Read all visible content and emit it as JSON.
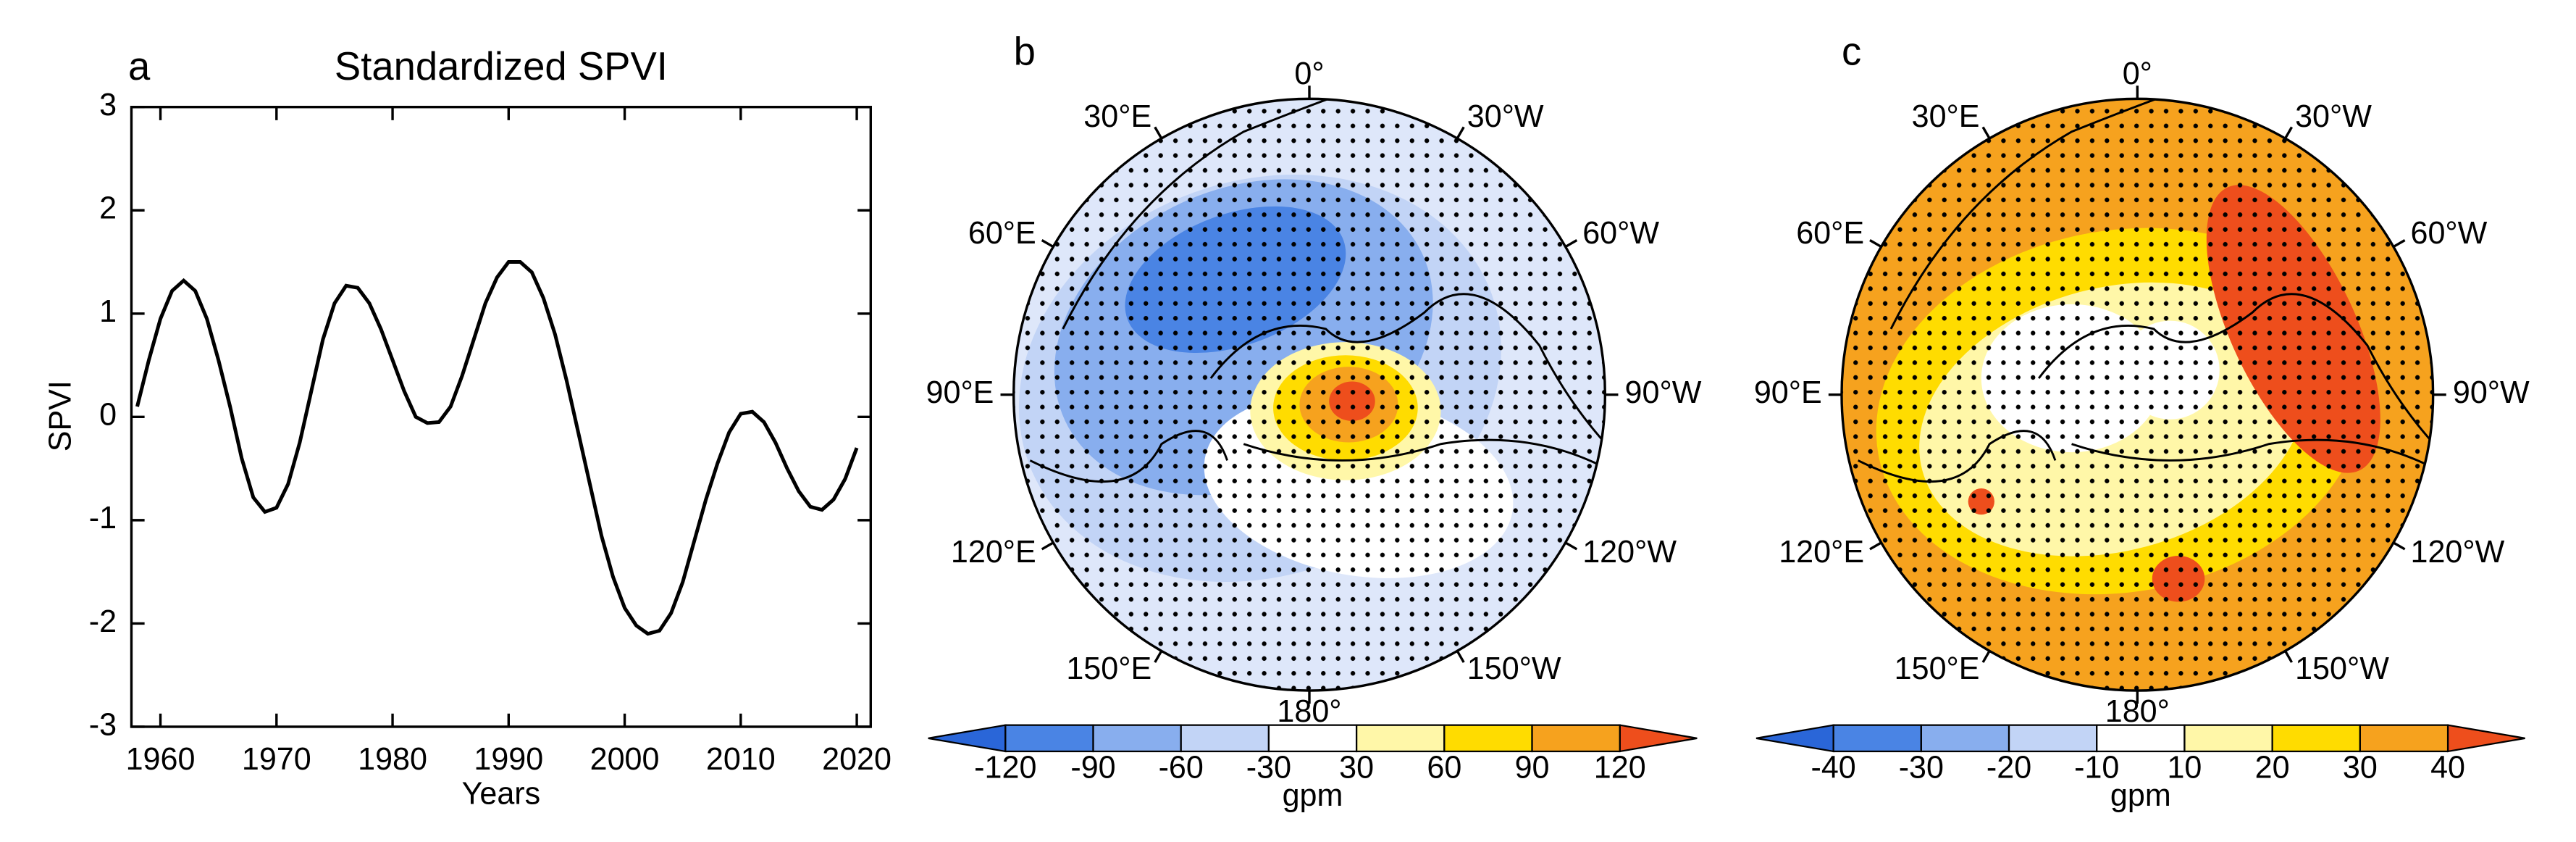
{
  "chart_data": [
    {
      "type": "line",
      "panel": "a",
      "title": "Standardized SPVI",
      "x_label": "Years",
      "y_label": "SPVI",
      "x": [
        1958,
        1959,
        1960,
        1961,
        1962,
        1963,
        1964,
        1965,
        1966,
        1967,
        1968,
        1969,
        1970,
        1971,
        1972,
        1973,
        1974,
        1975,
        1976,
        1977,
        1978,
        1979,
        1980,
        1981,
        1982,
        1983,
        1984,
        1985,
        1986,
        1987,
        1988,
        1989,
        1990,
        1991,
        1992,
        1993,
        1994,
        1995,
        1996,
        1997,
        1998,
        1999,
        2000,
        2001,
        2002,
        2003,
        2004,
        2005,
        2006,
        2007,
        2008,
        2009,
        2010,
        2011,
        2012,
        2013,
        2014,
        2015,
        2016,
        2017,
        2018,
        2019,
        2020
      ],
      "values": [
        0.1,
        0.55,
        0.95,
        1.22,
        1.32,
        1.22,
        0.95,
        0.55,
        0.1,
        -0.4,
        -0.78,
        -0.92,
        -0.88,
        -0.65,
        -0.25,
        0.25,
        0.75,
        1.1,
        1.27,
        1.25,
        1.1,
        0.85,
        0.55,
        0.25,
        0.0,
        -0.06,
        -0.05,
        0.1,
        0.4,
        0.75,
        1.1,
        1.35,
        1.5,
        1.5,
        1.4,
        1.15,
        0.8,
        0.35,
        -0.15,
        -0.65,
        -1.15,
        -1.55,
        -1.85,
        -2.02,
        -2.1,
        -2.07,
        -1.9,
        -1.6,
        -1.2,
        -0.8,
        -0.45,
        -0.15,
        0.03,
        0.05,
        -0.05,
        -0.25,
        -0.5,
        -0.72,
        -0.87,
        -0.9,
        -0.8,
        -0.6,
        -0.3
      ],
      "color": "#000000",
      "xlim": [
        1957.5,
        2021.2
      ],
      "xticks": [
        1960,
        1970,
        1980,
        1990,
        2000,
        2010,
        2020
      ],
      "ylim": [
        -3,
        3
      ],
      "yticks": [
        -3,
        -2,
        -1,
        0,
        1,
        2,
        3
      ]
    },
    {
      "type": "map",
      "panel": "b",
      "variant": "cold",
      "lon_labels": [
        "0°",
        "30°W",
        "60°W",
        "90°W",
        "120°W",
        "150°W",
        "180°",
        "150°E",
        "120°E",
        "90°E",
        "60°E",
        "30°E"
      ],
      "colorbar": {
        "levels": [
          -120,
          -90,
          -60,
          -30,
          30,
          60,
          90,
          120
        ],
        "label": "gpm",
        "colors": [
          "#2a66d8",
          "#4a84e4",
          "#88aeee",
          "#c2d4f6",
          "#ffffff",
          "#fff7a8",
          "#ffdc00",
          "#f6a21e",
          "#ee4e1c"
        ]
      }
    },
    {
      "type": "map",
      "panel": "c",
      "variant": "warm",
      "lon_labels": [
        "0°",
        "30°W",
        "60°W",
        "90°W",
        "120°W",
        "150°W",
        "180°",
        "150°E",
        "120°E",
        "90°E",
        "60°E",
        "30°E"
      ],
      "colorbar": {
        "levels": [
          -40,
          -30,
          -20,
          -10,
          10,
          20,
          30,
          40
        ],
        "label": "gpm",
        "colors": [
          "#2a66d8",
          "#4a84e4",
          "#88aeee",
          "#c2d4f6",
          "#ffffff",
          "#fff7a8",
          "#ffdc00",
          "#f6a21e",
          "#ee4e1c"
        ]
      }
    }
  ]
}
